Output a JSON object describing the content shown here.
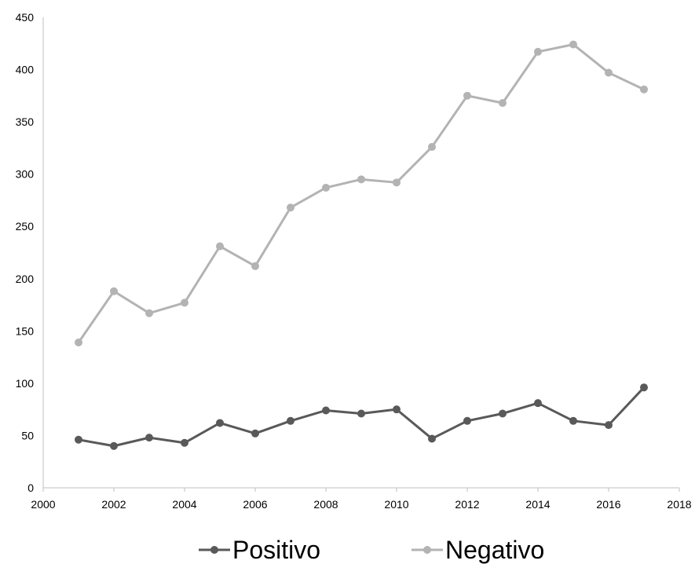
{
  "chart_data": {
    "type": "line",
    "title": "",
    "xlabel": "",
    "ylabel": "",
    "xlim": [
      2000,
      2018
    ],
    "ylim": [
      0,
      450
    ],
    "x_ticks": [
      2000,
      2002,
      2004,
      2006,
      2008,
      2010,
      2012,
      2014,
      2016,
      2018
    ],
    "y_ticks": [
      0,
      50,
      100,
      150,
      200,
      250,
      300,
      350,
      400,
      450
    ],
    "grid": false,
    "legend_position": "bottom",
    "x": [
      2001,
      2002,
      2003,
      2004,
      2005,
      2006,
      2007,
      2008,
      2009,
      2010,
      2011,
      2012,
      2013,
      2014,
      2015,
      2016,
      2017
    ],
    "series": [
      {
        "name": "Positivo",
        "color": "#595959",
        "values": [
          46,
          40,
          48,
          43,
          62,
          52,
          64,
          74,
          71,
          75,
          47,
          64,
          71,
          81,
          64,
          60,
          96
        ]
      },
      {
        "name": "Negativo",
        "color": "#b3b3b3",
        "values": [
          139,
          188,
          167,
          177,
          231,
          212,
          268,
          287,
          295,
          292,
          326,
          375,
          368,
          417,
          424,
          397,
          381
        ]
      }
    ]
  }
}
